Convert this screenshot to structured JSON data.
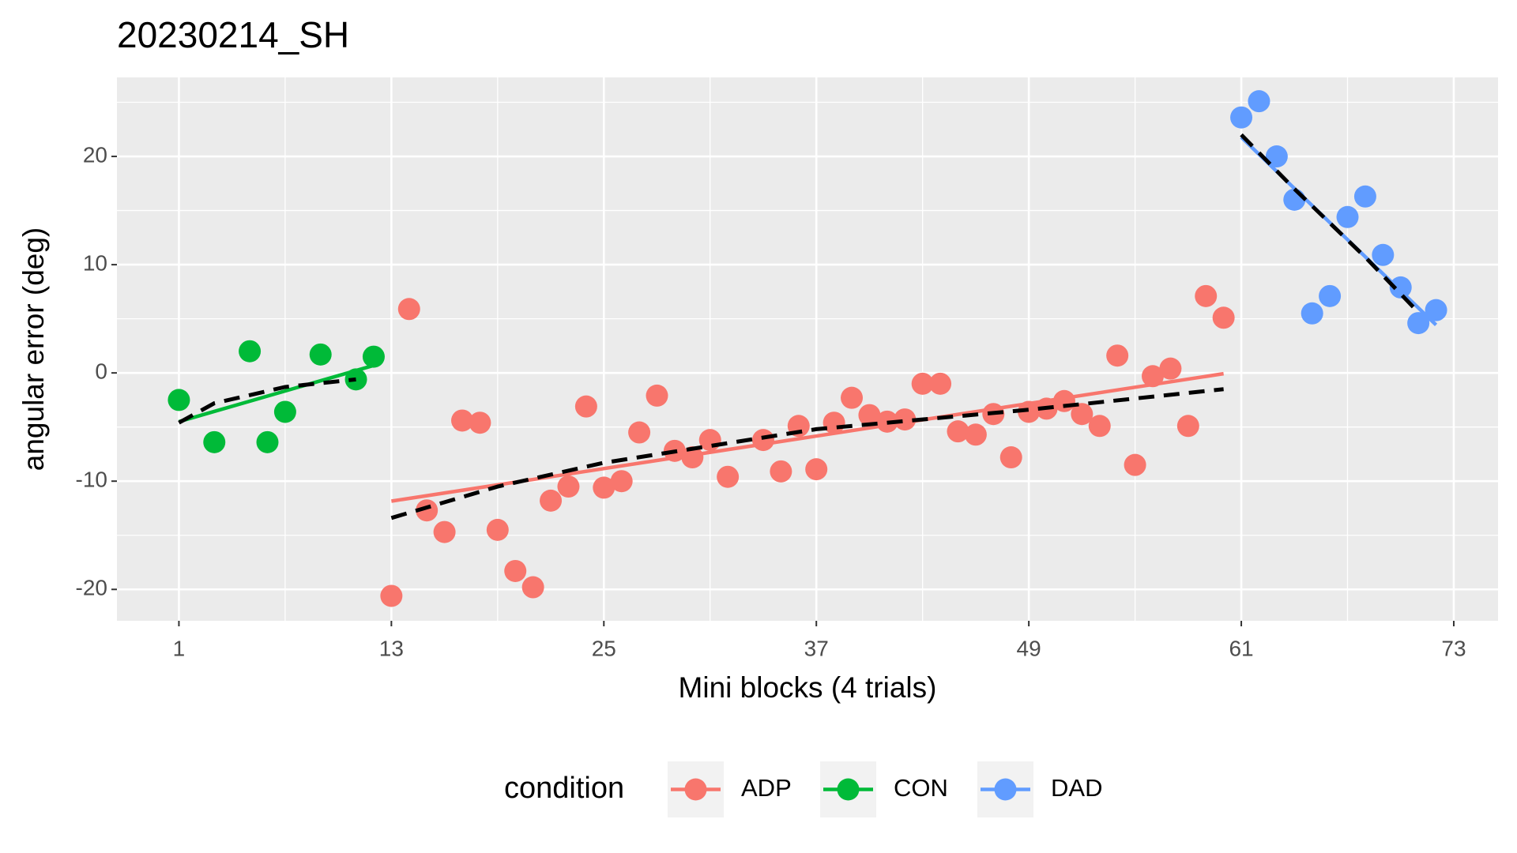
{
  "chart_data": {
    "type": "scatter",
    "title": "20230214_SH",
    "x_label": "Mini blocks (4 trials)",
    "y_label": "angular error (deg)",
    "legend_title": "condition",
    "legend_position": "bottom",
    "grid": true,
    "xlim": [
      -2.5,
      75.5
    ],
    "ylim": [
      -22.9,
      27.3
    ],
    "xticks": [
      1,
      13,
      25,
      37,
      49,
      61,
      73
    ],
    "yticks": [
      -20,
      -10,
      0,
      10,
      20
    ],
    "series": [
      {
        "name": "ADP",
        "color": "#F8766D",
        "x": [
          13,
          14,
          15,
          16,
          17,
          18,
          19,
          20,
          21,
          22,
          23,
          24,
          25,
          26,
          27,
          28,
          29,
          30,
          31,
          32,
          34,
          35,
          36,
          37,
          38,
          39,
          40,
          41,
          42,
          43,
          44,
          45,
          46,
          47,
          48,
          49,
          50,
          51,
          52,
          53,
          54,
          55,
          56,
          57,
          58,
          59,
          60
        ],
        "values": [
          -20.6,
          5.9,
          -12.7,
          -14.7,
          -4.4,
          -4.6,
          -14.5,
          -18.3,
          -19.8,
          -11.8,
          -10.5,
          -3.1,
          -10.6,
          -10.0,
          -5.5,
          -2.1,
          -7.2,
          -7.8,
          -6.2,
          -9.6,
          -6.2,
          -9.1,
          -4.9,
          -8.9,
          -4.6,
          -2.3,
          -3.9,
          -4.5,
          -4.3,
          -1.0,
          -1.0,
          -5.4,
          -5.7,
          -3.8,
          -7.8,
          -3.6,
          -3.3,
          -2.6,
          -3.8,
          -4.9,
          1.6,
          -8.5,
          -0.3,
          0.4,
          -4.9,
          7.1,
          5.1
        ],
        "trend": {
          "x": [
            13,
            19,
            25,
            37,
            49,
            60
          ],
          "y": [
            -13.4,
            -10.5,
            -8.3,
            -5.2,
            -3.4,
            -1.5
          ]
        }
      },
      {
        "name": "CON",
        "color": "#00BA38",
        "x": [
          1,
          3,
          5,
          6,
          7,
          9,
          11,
          12
        ],
        "values": [
          -2.5,
          -6.4,
          2.0,
          -6.4,
          -3.6,
          1.7,
          -0.6,
          1.5
        ],
        "trend": {
          "x": [
            1,
            3,
            7,
            11
          ],
          "y": [
            -4.6,
            -2.8,
            -1.3,
            -0.6
          ]
        }
      },
      {
        "name": "DAD",
        "color": "#619CFF",
        "x": [
          61,
          62,
          63,
          64,
          65,
          66,
          67,
          68,
          69,
          70,
          71,
          72
        ],
        "values": [
          23.6,
          25.1,
          20.0,
          16.0,
          5.5,
          7.1,
          14.4,
          16.3,
          10.9,
          7.9,
          4.6,
          5.8
        ],
        "trend": {
          "x": [
            61,
            64,
            68,
            71
          ],
          "y": [
            22.0,
            17.0,
            10.7,
            5.6
          ]
        }
      }
    ]
  }
}
